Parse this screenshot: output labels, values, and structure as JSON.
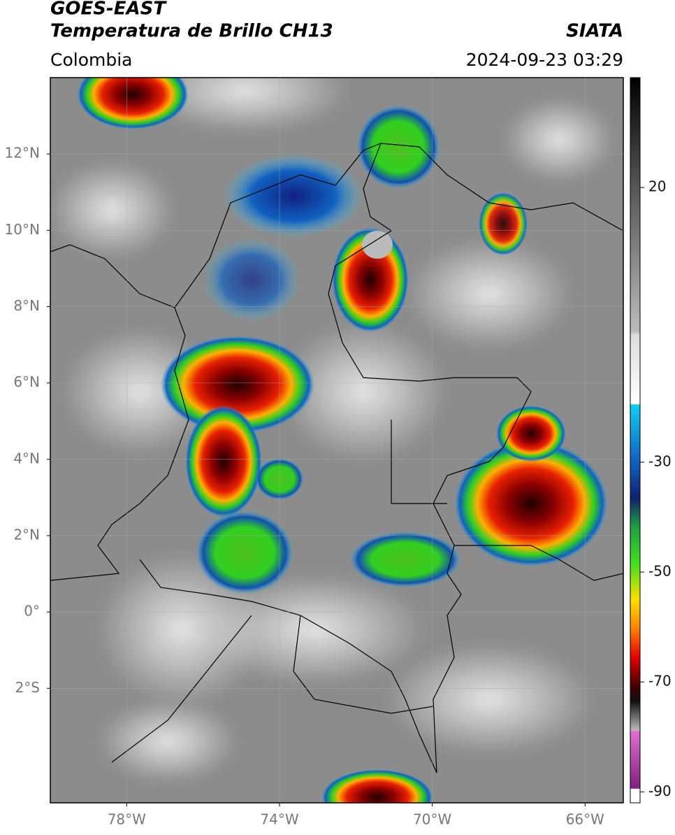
{
  "header": {
    "satellite": "GOES-EAST",
    "product": "Temperatura de Brillo CH13",
    "source": "SIATA",
    "region": "Colombia",
    "datetime": "2024-09-23 03:29"
  },
  "map": {
    "xlim": [
      -80,
      -65
    ],
    "ylim": [
      -5,
      14
    ],
    "xticks": [
      {
        "value": -78,
        "label": "78°W"
      },
      {
        "value": -74,
        "label": "74°W"
      },
      {
        "value": -70,
        "label": "70°W"
      },
      {
        "value": -66,
        "label": "66°W"
      }
    ],
    "yticks": [
      {
        "value": 12,
        "label": "12°N"
      },
      {
        "value": 10,
        "label": "10°N"
      },
      {
        "value": 8,
        "label": "8°N"
      },
      {
        "value": 6,
        "label": "6°N"
      },
      {
        "value": 4,
        "label": "4°N"
      },
      {
        "value": 2,
        "label": "2°N"
      },
      {
        "value": 0,
        "label": "0°"
      },
      {
        "value": -2,
        "label": "2°S"
      }
    ]
  },
  "colorbar": {
    "lim": [
      -92,
      40
    ],
    "ticks": [
      20,
      -30,
      -50,
      -70,
      -90
    ]
  }
}
